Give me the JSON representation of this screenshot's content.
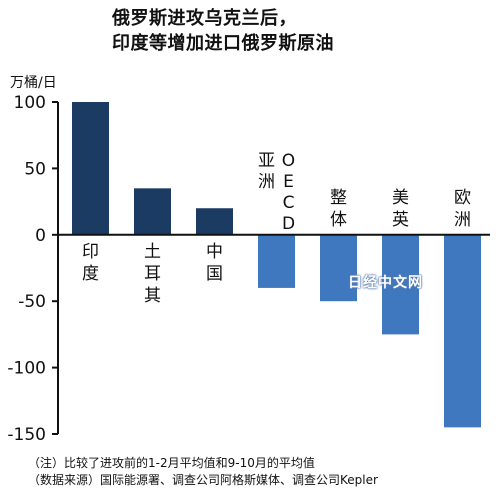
{
  "title_lines": [
    "俄罗斯进攻乌克兰后，",
    "印度等增加进口俄罗斯原油"
  ],
  "watermark": "日经中文网",
  "notes": [
    "（注）比较了进攻前的1-2月平均值和9-10月的平均值",
    "（数据来源）国际能源署、调查公司阿格斯媒体、调查公司Kepler"
  ],
  "chart_data": {
    "type": "bar",
    "title": "俄罗斯进攻乌克兰后，印度等增加进口俄罗斯原油",
    "ylabel": "万桶/日",
    "xlabel": "",
    "ylim": [
      -150,
      100
    ],
    "yticks": [
      100,
      50,
      0,
      -50,
      -100,
      -150
    ],
    "ytick_labels": [
      "100",
      "50",
      "0",
      "-50",
      "-100",
      "-150"
    ],
    "grid": false,
    "categories": [
      "印度",
      "土耳其",
      "中国",
      "亚洲OECD",
      "整体",
      "美英",
      "欧洲"
    ],
    "category_lines": [
      [
        "印",
        "度"
      ],
      [
        "土",
        "耳",
        "其"
      ],
      [
        "中",
        "国"
      ],
      [
        "亚洲",
        "OECD"
      ],
      [
        "整",
        "体"
      ],
      [
        "美",
        "英"
      ],
      [
        "欧",
        "洲"
      ]
    ],
    "values": [
      100,
      35,
      20,
      -40,
      -50,
      -75,
      -145
    ],
    "colors": {
      "positive": "#1c3b63",
      "negative": "#3f78bf",
      "axis": "#111111"
    }
  }
}
